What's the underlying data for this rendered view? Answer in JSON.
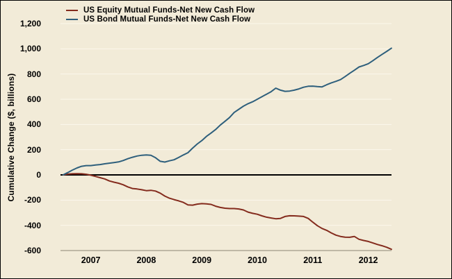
{
  "figure": {
    "background_color": "#f2ebd8",
    "border_color": "#000000",
    "grid_color": "#fcf8ec",
    "zero_line_color": "#000000",
    "bottom_axis_color": "#8c8573",
    "text_color": "#000000"
  },
  "chart_data": {
    "type": "line",
    "title": "",
    "xlabel": "",
    "ylabel": "Cumulative Change ($, billions)",
    "ylim": [
      -600,
      1200
    ],
    "grid": true,
    "legend_position": "top-left",
    "x_start_year": 2007,
    "x_months_per_point": 1,
    "x_range_note": "monthly points Jan 2007 through Dec 2012",
    "yticks": [
      {
        "label": "1,200",
        "value": 1200
      },
      {
        "label": "1,000",
        "value": 1000
      },
      {
        "label": "800",
        "value": 800
      },
      {
        "label": "600",
        "value": 600
      },
      {
        "label": "400",
        "value": 400
      },
      {
        "label": "200",
        "value": 200
      },
      {
        "label": "0",
        "value": 0
      },
      {
        "label": "-200",
        "value": -200
      },
      {
        "label": "-400",
        "value": -400
      },
      {
        "label": "-600",
        "value": -600
      }
    ],
    "xticks": [
      {
        "label": "2007",
        "value": 2007.5
      },
      {
        "label": "2008",
        "value": 2008.5
      },
      {
        "label": "2009",
        "value": 2009.5
      },
      {
        "label": "2010",
        "value": 2010.5
      },
      {
        "label": "2011",
        "value": 2011.5
      },
      {
        "label": "2012",
        "value": 2012.5
      }
    ],
    "series": [
      {
        "name": "US Equity Mutual Funds-Net New Cash Flow",
        "color": "#842b1d",
        "values": [
          0,
          6,
          9,
          10,
          9,
          5,
          -2,
          -12,
          -22,
          -32,
          -48,
          -58,
          -66,
          -78,
          -95,
          -108,
          -112,
          -118,
          -125,
          -122,
          -128,
          -145,
          -168,
          -185,
          -196,
          -206,
          -218,
          -238,
          -240,
          -232,
          -228,
          -230,
          -234,
          -248,
          -258,
          -264,
          -267,
          -267,
          -270,
          -278,
          -295,
          -305,
          -312,
          -325,
          -335,
          -342,
          -348,
          -345,
          -330,
          -324,
          -325,
          -327,
          -330,
          -345,
          -375,
          -403,
          -425,
          -440,
          -460,
          -478,
          -488,
          -494,
          -495,
          -488,
          -511,
          -520,
          -528,
          -540,
          -552,
          -562,
          -574,
          -590
        ]
      },
      {
        "name": "US Bond Mutual Funds-Net New Cash Flow",
        "color": "#2e5f7c",
        "values": [
          0,
          18,
          38,
          55,
          68,
          74,
          74,
          78,
          82,
          88,
          93,
          98,
          103,
          114,
          128,
          140,
          150,
          156,
          158,
          155,
          136,
          108,
          102,
          112,
          120,
          138,
          158,
          176,
          212,
          245,
          272,
          305,
          332,
          360,
          395,
          425,
          455,
          495,
          520,
          545,
          565,
          580,
          600,
          620,
          640,
          660,
          688,
          672,
          663,
          665,
          672,
          682,
          695,
          703,
          704,
          700,
          698,
          715,
          730,
          742,
          756,
          780,
          806,
          830,
          856,
          868,
          882,
          906,
          932,
          956,
          980,
          1005
        ]
      }
    ]
  }
}
